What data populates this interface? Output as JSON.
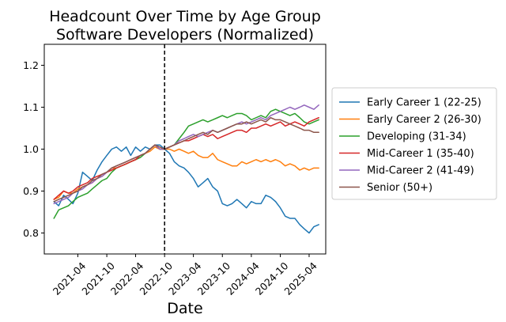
{
  "chart_data": {
    "type": "line",
    "title_line1": "Headcount Over Time by Age Group",
    "title_line2": "Software Developers (Normalized)",
    "xlabel": "Date",
    "ylabel": "",
    "ylim": [
      0.75,
      1.25
    ],
    "yticks": [
      0.8,
      0.9,
      1.0,
      1.1,
      1.2
    ],
    "ytick_labels": [
      "0.8",
      "0.9",
      "1.0",
      "1.1",
      "1.2"
    ],
    "xlim": [
      "2020-09-01",
      "2025-07-15"
    ],
    "xticks": [
      "2021-04",
      "2021-10",
      "2022-04",
      "2022-10",
      "2023-04",
      "2023-10",
      "2024-04",
      "2024-10",
      "2025-04"
    ],
    "vline_date": "2022-10",
    "vline_style": "dashed",
    "grid": false,
    "legend_placement": "outside-right",
    "x": [
      "2020-11",
      "2020-12",
      "2021-01",
      "2021-02",
      "2021-03",
      "2021-04",
      "2021-05",
      "2021-06",
      "2021-07",
      "2021-08",
      "2021-09",
      "2021-10",
      "2021-11",
      "2021-12",
      "2022-01",
      "2022-02",
      "2022-03",
      "2022-04",
      "2022-05",
      "2022-06",
      "2022-07",
      "2022-08",
      "2022-09",
      "2022-10",
      "2022-11",
      "2022-12",
      "2023-01",
      "2023-02",
      "2023-03",
      "2023-04",
      "2023-05",
      "2023-06",
      "2023-07",
      "2023-08",
      "2023-09",
      "2023-10",
      "2023-11",
      "2023-12",
      "2024-01",
      "2024-02",
      "2024-03",
      "2024-04",
      "2024-05",
      "2024-06",
      "2024-07",
      "2024-08",
      "2024-09",
      "2024-10",
      "2024-11",
      "2024-12",
      "2025-01",
      "2025-02",
      "2025-03",
      "2025-04",
      "2025-05",
      "2025-06"
    ],
    "series": [
      {
        "name": "Early Career 1 (22-25)",
        "color": "#1f77b4",
        "values": [
          0.875,
          0.865,
          0.89,
          0.88,
          0.87,
          0.895,
          0.945,
          0.935,
          0.925,
          0.95,
          0.97,
          0.985,
          1.0,
          1.005,
          0.995,
          1.005,
          0.985,
          1.005,
          0.995,
          1.005,
          1.0,
          1.01,
          1.01,
          1.0,
          0.99,
          0.97,
          0.96,
          0.955,
          0.945,
          0.93,
          0.91,
          0.92,
          0.93,
          0.91,
          0.9,
          0.87,
          0.865,
          0.87,
          0.88,
          0.87,
          0.86,
          0.875,
          0.87,
          0.87,
          0.89,
          0.885,
          0.875,
          0.86,
          0.84,
          0.835,
          0.835,
          0.82,
          0.81,
          0.8,
          0.815,
          0.82
        ]
      },
      {
        "name": "Early Career 2 (26-30)",
        "color": "#ff7f0e",
        "values": [
          0.88,
          0.885,
          0.9,
          0.895,
          0.895,
          0.905,
          0.91,
          0.915,
          0.92,
          0.93,
          0.935,
          0.945,
          0.955,
          0.955,
          0.96,
          0.965,
          0.97,
          0.975,
          0.985,
          0.99,
          0.995,
          1.005,
          1.0,
          1.0,
          1.0,
          0.995,
          1.0,
          0.995,
          0.99,
          0.995,
          0.985,
          0.98,
          0.98,
          0.99,
          0.975,
          0.97,
          0.965,
          0.96,
          0.96,
          0.97,
          0.965,
          0.97,
          0.975,
          0.97,
          0.975,
          0.97,
          0.975,
          0.97,
          0.96,
          0.965,
          0.96,
          0.95,
          0.955,
          0.95,
          0.955,
          0.955
        ]
      },
      {
        "name": "Developing (31-34)",
        "color": "#2ca02c",
        "values": [
          0.835,
          0.855,
          0.86,
          0.865,
          0.875,
          0.885,
          0.89,
          0.895,
          0.905,
          0.915,
          0.925,
          0.93,
          0.945,
          0.955,
          0.96,
          0.965,
          0.97,
          0.975,
          0.98,
          0.99,
          1.0,
          1.01,
          1.0,
          1.0,
          1.005,
          1.01,
          1.025,
          1.04,
          1.055,
          1.06,
          1.065,
          1.07,
          1.065,
          1.07,
          1.075,
          1.08,
          1.075,
          1.08,
          1.085,
          1.085,
          1.08,
          1.07,
          1.075,
          1.08,
          1.075,
          1.09,
          1.095,
          1.09,
          1.085,
          1.08,
          1.085,
          1.075,
          1.065,
          1.06,
          1.065,
          1.07
        ]
      },
      {
        "name": "Mid-Career 1 (35-40)",
        "color": "#d62728",
        "values": [
          0.88,
          0.89,
          0.9,
          0.895,
          0.9,
          0.91,
          0.915,
          0.92,
          0.93,
          0.935,
          0.94,
          0.945,
          0.95,
          0.955,
          0.96,
          0.965,
          0.97,
          0.975,
          0.985,
          0.99,
          1.0,
          1.01,
          1.0,
          1.0,
          1.005,
          1.01,
          1.015,
          1.02,
          1.02,
          1.025,
          1.03,
          1.035,
          1.03,
          1.035,
          1.025,
          1.03,
          1.035,
          1.04,
          1.045,
          1.045,
          1.04,
          1.05,
          1.05,
          1.055,
          1.06,
          1.055,
          1.06,
          1.065,
          1.055,
          1.06,
          1.065,
          1.06,
          1.055,
          1.065,
          1.07,
          1.075
        ]
      },
      {
        "name": "Mid-Career 2 (41-49)",
        "color": "#9467bd",
        "values": [
          0.87,
          0.875,
          0.88,
          0.885,
          0.895,
          0.9,
          0.905,
          0.915,
          0.92,
          0.93,
          0.935,
          0.945,
          0.955,
          0.96,
          0.965,
          0.97,
          0.975,
          0.98,
          0.985,
          0.99,
          1.0,
          1.01,
          1.0,
          1.0,
          1.005,
          1.01,
          1.02,
          1.025,
          1.03,
          1.035,
          1.03,
          1.035,
          1.04,
          1.045,
          1.04,
          1.045,
          1.05,
          1.055,
          1.06,
          1.065,
          1.06,
          1.065,
          1.07,
          1.075,
          1.07,
          1.08,
          1.085,
          1.09,
          1.095,
          1.1,
          1.095,
          1.1,
          1.105,
          1.1,
          1.095,
          1.105
        ]
      },
      {
        "name": "Senior (50+)",
        "color": "#8c564b",
        "values": [
          0.875,
          0.88,
          0.885,
          0.89,
          0.895,
          0.9,
          0.91,
          0.915,
          0.925,
          0.93,
          0.94,
          0.945,
          0.955,
          0.96,
          0.965,
          0.97,
          0.975,
          0.98,
          0.985,
          0.99,
          1.0,
          1.01,
          1.005,
          1.0,
          1.005,
          1.01,
          1.015,
          1.02,
          1.025,
          1.03,
          1.035,
          1.04,
          1.035,
          1.045,
          1.04,
          1.045,
          1.05,
          1.055,
          1.06,
          1.06,
          1.065,
          1.06,
          1.065,
          1.07,
          1.065,
          1.075,
          1.07,
          1.07,
          1.065,
          1.06,
          1.055,
          1.05,
          1.045,
          1.045,
          1.04,
          1.04
        ]
      }
    ]
  }
}
